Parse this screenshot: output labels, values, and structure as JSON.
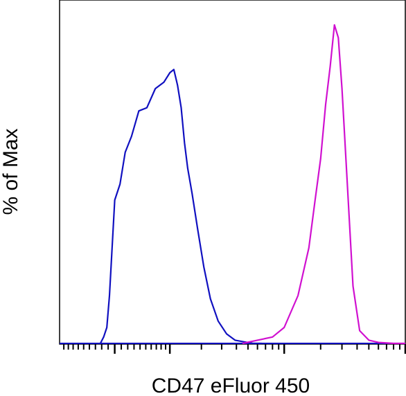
{
  "chart_data": {
    "type": "line",
    "title": "",
    "xlabel": "CD47 eFluor 450",
    "ylabel": "% of Max",
    "xscale": "log",
    "xlim": [
      -1000,
      100000
    ],
    "ylim": [
      0,
      100
    ],
    "grid": false,
    "legend": "none",
    "tick_labels_shown": false,
    "series": [
      {
        "color": "#1010c0",
        "x": [
          -220,
          -170,
          -120,
          -80,
          -40,
          0,
          80,
          160,
          260,
          380,
          520,
          680,
          860,
          1000,
          1100,
          1200,
          1300,
          1400,
          1500,
          1650,
          1850,
          2100,
          2400,
          2800,
          3300,
          3900,
          4600,
          5500,
          6500
        ],
        "y": [
          0,
          2,
          5,
          15,
          30,
          45,
          50,
          60,
          65,
          73,
          74,
          80,
          82,
          85,
          86,
          81,
          74,
          63,
          55,
          47,
          36,
          24,
          14,
          7,
          3,
          1,
          0.5,
          0,
          0
        ]
      },
      {
        "color": "#d010d0",
        "x": [
          4500,
          6000,
          8000,
          10000,
          13000,
          16000,
          18000,
          20000,
          22000,
          24000,
          26000,
          28000,
          30000,
          33000,
          37000,
          42000,
          50000,
          60000,
          80000,
          100000
        ],
        "y": [
          0,
          1,
          2,
          5,
          15,
          30,
          45,
          58,
          75,
          87,
          100,
          96,
          80,
          52,
          18,
          4,
          1,
          0.3,
          0,
          0
        ]
      }
    ]
  }
}
